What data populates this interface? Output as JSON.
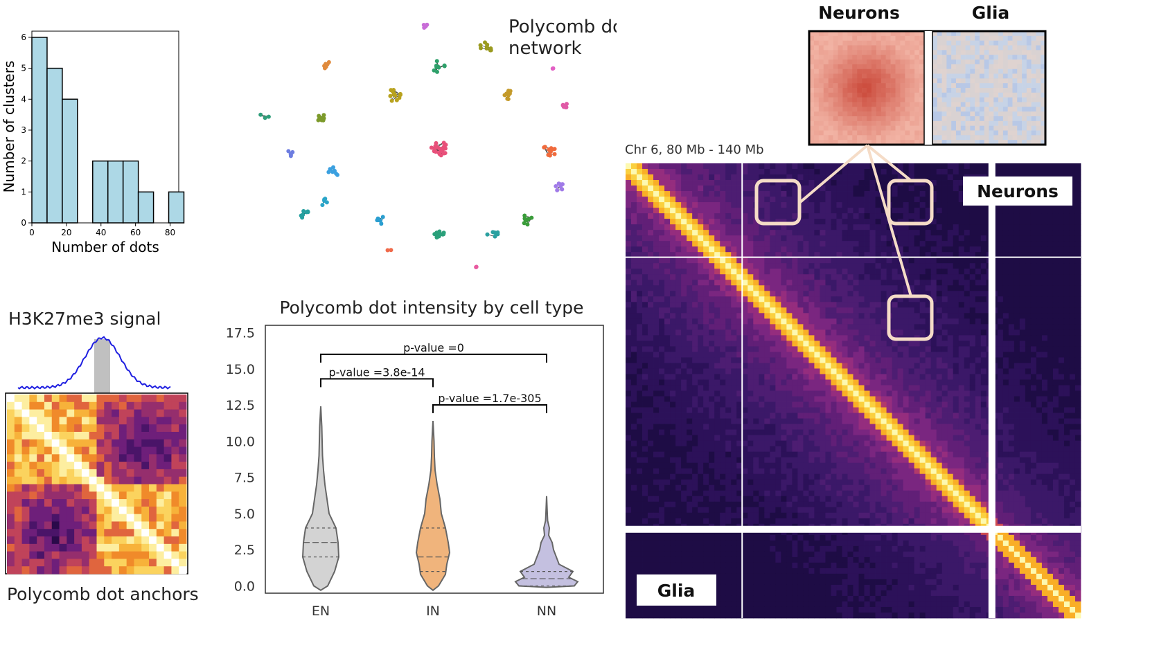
{
  "histogram": {
    "chart_data": {
      "type": "bar",
      "xlabel": "Number of dots",
      "ylabel": "Number of clusters",
      "xlim": [
        0,
        85
      ],
      "ylim": [
        0,
        6.2
      ],
      "xticks": [
        0,
        20,
        40,
        60,
        80
      ],
      "yticks": [
        0,
        1,
        2,
        3,
        4,
        5,
        6
      ],
      "bin_edges": [
        0,
        8.8,
        17.6,
        26.4,
        35.2,
        44,
        52.8,
        61.6,
        70.4,
        79.2,
        88
      ],
      "values": [
        6,
        5,
        4,
        0,
        2,
        2,
        2,
        1,
        0,
        1
      ],
      "color": "#add8e6"
    }
  },
  "network": {
    "title": "Polycomb dots\nnetwork",
    "title_lines": [
      "Polycomb dots",
      "network"
    ],
    "clusters": [
      {
        "color": "#c86dd7",
        "n": 5
      },
      {
        "color": "#9a9a1f",
        "n": 9
      },
      {
        "color": "#e08a3c",
        "n": 7
      },
      {
        "color": "#2ea06a",
        "n": 10
      },
      {
        "color": "#e25fc4",
        "n": 2
      },
      {
        "color": "#b8a21e",
        "n": 12
      },
      {
        "color": "#c49a2a",
        "n": 10
      },
      {
        "color": "#e05aa6",
        "n": 8
      },
      {
        "color": "#2f9e7a",
        "n": 3
      },
      {
        "color": "#7c9a2a",
        "n": 9
      },
      {
        "color": "#e8507a",
        "n": 22
      },
      {
        "color": "#f06a3c",
        "n": 14
      },
      {
        "color": "#6d7de0",
        "n": 5
      },
      {
        "color": "#3aa0e0",
        "n": 7
      },
      {
        "color": "#a07ae8",
        "n": 7
      },
      {
        "color": "#2aa5c8",
        "n": 6
      },
      {
        "color": "#25a0a0",
        "n": 8
      },
      {
        "color": "#2a9ed0",
        "n": 8
      },
      {
        "color": "#3a9c3a",
        "n": 9
      },
      {
        "color": "#2aa07a",
        "n": 14
      },
      {
        "color": "#2aa0a0",
        "n": 7
      },
      {
        "color": "#f06a4a",
        "n": 2
      },
      {
        "color": "#e85aa0",
        "n": 2
      }
    ]
  },
  "anchors": {
    "signal_title": "H3K27me3 signal",
    "caption": "Polycomb dot anchors",
    "signal_color": "#1f1fe0"
  },
  "violin": {
    "chart_data": {
      "type": "violin",
      "title": "Polycomb dot intensity by cell type",
      "categories": [
        "EN",
        "IN",
        "NN"
      ],
      "ylim": [
        -0.5,
        18
      ],
      "yticks": [
        "0.0",
        "2.5",
        "5.0",
        "7.5",
        "10.0",
        "12.5",
        "15.0",
        "17.5"
      ],
      "ytick_values": [
        0,
        2.5,
        5,
        7.5,
        10,
        12.5,
        15,
        17.5
      ],
      "series": [
        {
          "category": "EN",
          "color": "#d3d3d3",
          "min": -0.3,
          "max": 12.4,
          "q1": 2,
          "median": 3,
          "q3": 4
        },
        {
          "category": "IN",
          "color": "#f0b47c",
          "min": -0.3,
          "max": 11.4,
          "q1": 1,
          "median": 2,
          "q3": 4
        },
        {
          "category": "NN",
          "color": "#c4c0e0",
          "min": -0.1,
          "max": 6.2,
          "q1": 0,
          "median": 0.5,
          "q3": 1
        }
      ],
      "comparisons": [
        {
          "from": "EN",
          "to": "NN",
          "label": "p-value =0",
          "level": 16
        },
        {
          "from": "EN",
          "to": "IN",
          "label": "p-value =3.8e-14",
          "level": 14.3
        },
        {
          "from": "IN",
          "to": "NN",
          "label": "p-value =1.7e-305",
          "level": 12.5
        }
      ]
    }
  },
  "hic": {
    "region_label": "Chr 6, 80 Mb - 140 Mb",
    "neurons_label": "Neurons",
    "glia_label": "Glia",
    "inset_neurons_label": "Neurons",
    "inset_glia_label": "Glia",
    "highlight_color": "#f5dcc7"
  }
}
